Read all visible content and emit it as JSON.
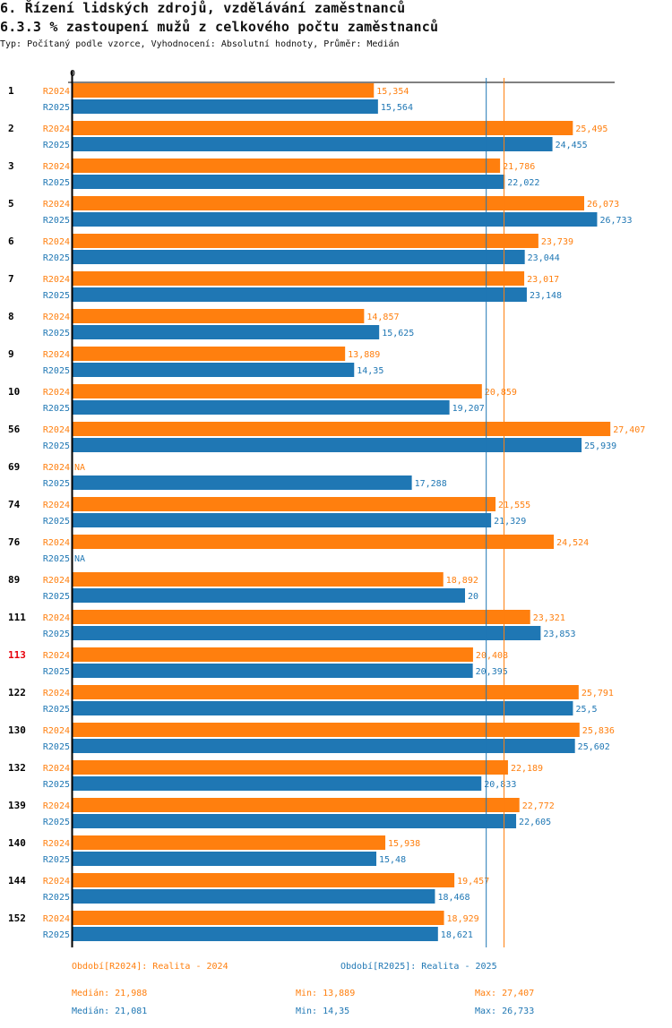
{
  "header": {
    "title": "6. Řízení lidských zdrojů, vzdělávání zaměstnanců",
    "subtitle": "6.3.3 % zastoupení mužů z celkového počtu zaměstnanců",
    "info": "Typ: Počítaný podle vzorce, Vyhodnocení: Absolutní hodnoty, Průměr: Medián"
  },
  "colors": {
    "R2024": "#ff7f0e",
    "R2025": "#1f77b4",
    "highlight": "#e8000b",
    "axis": "#000000"
  },
  "chart_data": {
    "type": "bar",
    "orientation": "horizontal",
    "title": "6.3.3 % zastoupení mužů z celkového počtu zaměstnanců",
    "xlabel": "",
    "ylabel": "",
    "x_tick_labels": [
      "0"
    ],
    "xlim": [
      0,
      27.407
    ],
    "grid": false,
    "categories": [
      "1",
      "2",
      "3",
      "5",
      "6",
      "7",
      "8",
      "9",
      "10",
      "56",
      "69",
      "74",
      "76",
      "89",
      "111",
      "113",
      "122",
      "130",
      "132",
      "139",
      "140",
      "144",
      "152"
    ],
    "highlighted_category": "113",
    "series": [
      {
        "name": "R2024",
        "values": [
          15.354,
          25.495,
          21.786,
          26.073,
          23.739,
          23.017,
          14.857,
          13.889,
          20.859,
          27.407,
          null,
          21.555,
          24.524,
          18.892,
          23.321,
          20.408,
          25.791,
          25.836,
          22.189,
          22.772,
          15.938,
          19.457,
          18.929
        ],
        "labels": [
          "15,354",
          "25,495",
          "21,786",
          "26,073",
          "23,739",
          "23,017",
          "14,857",
          "13,889",
          "20,859",
          "27,407",
          "NA",
          "21,555",
          "24,524",
          "18,892",
          "23,321",
          "20,408",
          "25,791",
          "25,836",
          "22,189",
          "22,772",
          "15,938",
          "19,457",
          "18,929"
        ]
      },
      {
        "name": "R2025",
        "values": [
          15.564,
          24.455,
          22.022,
          26.733,
          23.044,
          23.148,
          15.625,
          14.35,
          19.207,
          25.939,
          17.288,
          21.329,
          null,
          20,
          23.853,
          20.395,
          25.5,
          25.602,
          20.833,
          22.605,
          15.48,
          18.468,
          18.621
        ],
        "labels": [
          "15,564",
          "24,455",
          "22,022",
          "26,733",
          "23,044",
          "23,148",
          "15,625",
          "14,35",
          "19,207",
          "25,939",
          "17,288",
          "21,329",
          "NA",
          "20",
          "23,853",
          "20,395",
          "25,5",
          "25,602",
          "20,833",
          "22,605",
          "15,48",
          "18,468",
          "18,621"
        ]
      }
    ],
    "reference_lines": [
      {
        "series": "R2024",
        "type": "median",
        "value": 21.988
      },
      {
        "series": "R2025",
        "type": "median",
        "value": 21.081
      }
    ]
  },
  "legend": {
    "r2024": "Období[R2024]: Realita - 2024",
    "r2025": "Období[R2025]: Realita - 2025"
  },
  "stats": {
    "r2024": {
      "median": "Medián: 21,988",
      "min": "Min: 13,889",
      "max": "Max: 27,407"
    },
    "r2025": {
      "median": "Medián: 21,081",
      "min": "Min: 14,35",
      "max": "Max: 26,733"
    }
  }
}
